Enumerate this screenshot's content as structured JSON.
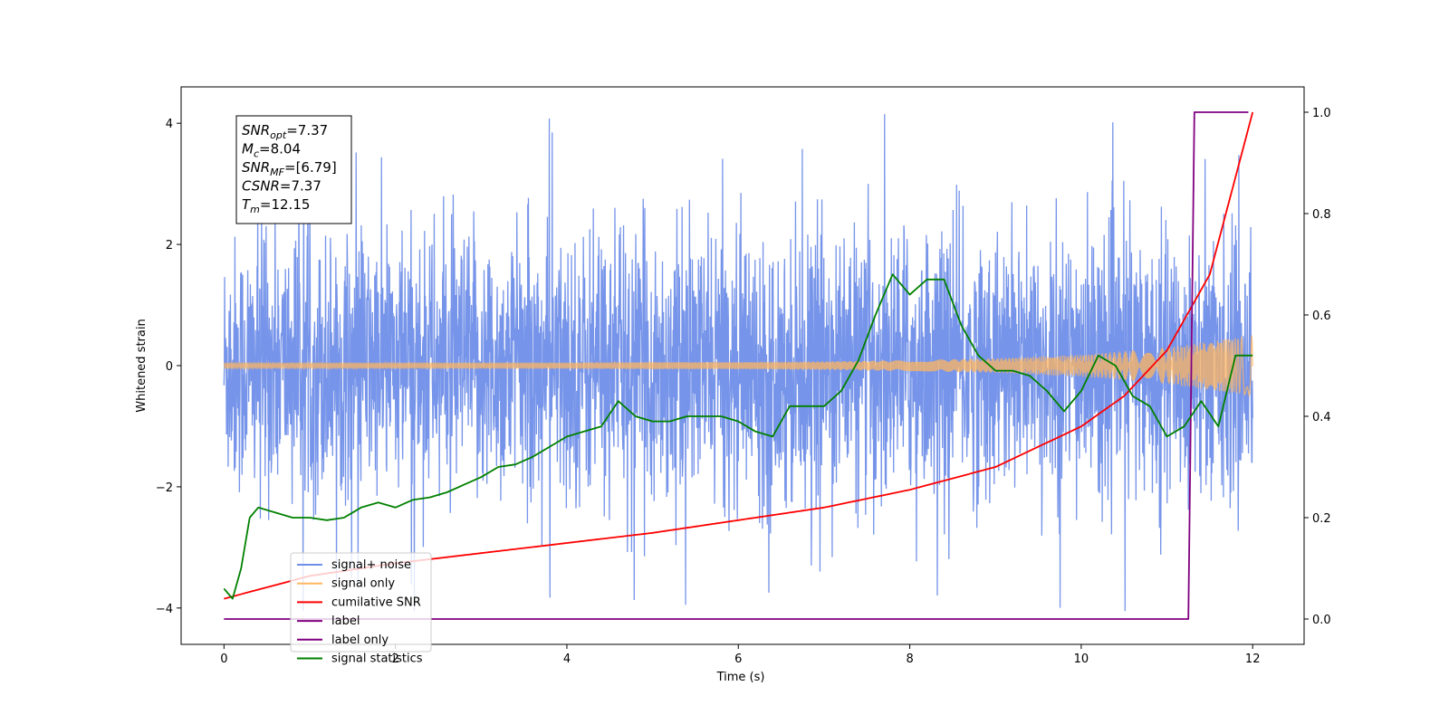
{
  "chart_data": {
    "type": "line",
    "xlabel": "Time (s)",
    "ylabel": "Whitened strain",
    "xlim": [
      -0.5,
      12.6
    ],
    "ylim": [
      -4.6,
      4.6
    ],
    "y2lim": [
      -0.05,
      1.05
    ],
    "xticks": [
      "0",
      "2",
      "4",
      "6",
      "8",
      "10",
      "12"
    ],
    "yticks": [
      "−4",
      "−2",
      "0",
      "2",
      "4"
    ],
    "y2ticks": [
      "0.0",
      "0.2",
      "0.4",
      "0.6",
      "0.8",
      "1.0"
    ],
    "grid": false,
    "legend_position": "lower-left",
    "annotation": {
      "lines": [
        {
          "sym": "SNR",
          "sub": "opt",
          "val": "=7.37"
        },
        {
          "sym": "M",
          "sub": "c",
          "val": "=8.04"
        },
        {
          "sym": "SNR",
          "sub": "MF",
          "val": "=[6.79]"
        },
        {
          "sym": "CSNR",
          "sub": "",
          "val": "=7.37"
        },
        {
          "sym": "T",
          "sub": "m",
          "val": "=12.15"
        }
      ]
    },
    "series": [
      {
        "name": "signal+ noise",
        "axis": "left",
        "color": "#6f8ee8",
        "note": "noise band, amplitude about ±3 with spikes to ±4.2",
        "t_range": [
          0,
          12
        ],
        "amplitude": 2.2
      },
      {
        "name": "signal only",
        "axis": "left",
        "color": "#ffb560",
        "t_range": [
          0,
          12
        ],
        "envelope": {
          "x": [
            0,
            1,
            2,
            3,
            4,
            5,
            6,
            7,
            8,
            9,
            10,
            11,
            12
          ],
          "y": [
            0.05,
            0.05,
            0.05,
            0.05,
            0.05,
            0.06,
            0.06,
            0.07,
            0.09,
            0.12,
            0.18,
            0.3,
            0.5
          ]
        }
      },
      {
        "name": "cumilative SNR",
        "axis": "right",
        "color": "#ff0000",
        "x": [
          0,
          1,
          2,
          3,
          4,
          5,
          6,
          7,
          8,
          9,
          10,
          10.5,
          11,
          11.5,
          12
        ],
        "y": [
          0.04,
          0.085,
          0.11,
          0.13,
          0.15,
          0.17,
          0.195,
          0.22,
          0.255,
          0.3,
          0.38,
          0.44,
          0.53,
          0.68,
          1.0
        ]
      },
      {
        "name": "label",
        "axis": "right",
        "color": "#800080",
        "x": [
          0,
          11.25,
          11.32,
          11.95
        ],
        "y": [
          0.0,
          0.0,
          1.0,
          1.0
        ]
      },
      {
        "name": "label only",
        "axis": "right",
        "color": "#800080",
        "x": [],
        "y": []
      },
      {
        "name": "signal statistics",
        "axis": "right",
        "color": "#008000",
        "x": [
          0,
          0.1,
          0.2,
          0.3,
          0.4,
          0.6,
          0.8,
          1.0,
          1.2,
          1.4,
          1.6,
          1.8,
          2.0,
          2.2,
          2.4,
          2.6,
          2.8,
          3.0,
          3.2,
          3.4,
          3.6,
          3.8,
          4.0,
          4.2,
          4.4,
          4.6,
          4.8,
          5.0,
          5.2,
          5.4,
          5.6,
          5.8,
          6.0,
          6.2,
          6.4,
          6.6,
          6.8,
          7.0,
          7.2,
          7.4,
          7.6,
          7.8,
          8.0,
          8.2,
          8.4,
          8.6,
          8.8,
          9.0,
          9.2,
          9.4,
          9.6,
          9.8,
          10.0,
          10.2,
          10.4,
          10.6,
          10.8,
          11.0,
          11.2,
          11.4,
          11.6,
          11.8,
          12.0
        ],
        "y": [
          0.06,
          0.04,
          0.1,
          0.2,
          0.22,
          0.21,
          0.2,
          0.2,
          0.195,
          0.2,
          0.22,
          0.23,
          0.22,
          0.235,
          0.24,
          0.25,
          0.265,
          0.28,
          0.3,
          0.305,
          0.32,
          0.34,
          0.36,
          0.37,
          0.38,
          0.43,
          0.4,
          0.39,
          0.39,
          0.4,
          0.4,
          0.4,
          0.39,
          0.37,
          0.36,
          0.42,
          0.42,
          0.42,
          0.45,
          0.51,
          0.6,
          0.68,
          0.64,
          0.67,
          0.67,
          0.58,
          0.52,
          0.49,
          0.49,
          0.48,
          0.45,
          0.41,
          0.45,
          0.52,
          0.5,
          0.44,
          0.42,
          0.36,
          0.38,
          0.43,
          0.38,
          0.52,
          0.52
        ]
      }
    ]
  }
}
